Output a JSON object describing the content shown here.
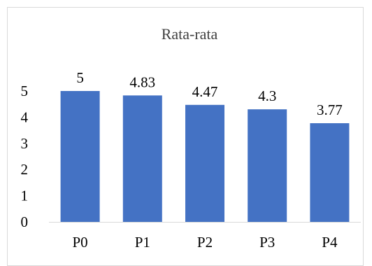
{
  "chart_data": {
    "type": "bar",
    "title": "Rata-rata",
    "categories": [
      "P0",
      "P1",
      "P2",
      "P3",
      "P4"
    ],
    "values": [
      5,
      4.83,
      4.47,
      4.3,
      3.77
    ],
    "data_labels": [
      "5",
      "4.83",
      "4.47",
      "4.3",
      "3.77"
    ],
    "ylim": [
      0,
      5
    ],
    "yticks": [
      "0",
      "1",
      "2",
      "3",
      "4",
      "5"
    ],
    "grid": false,
    "bar_color": "#4472C4",
    "axis_color": "#d9d9d9"
  }
}
